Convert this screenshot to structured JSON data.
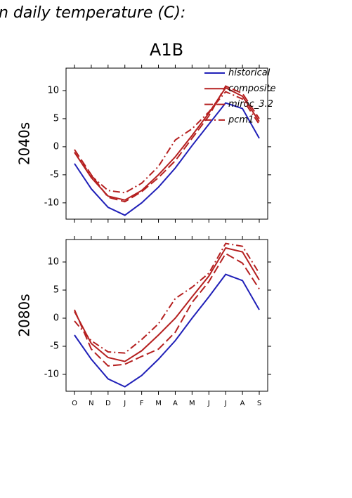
{
  "chart_data": [
    {
      "type": "line",
      "title": "n daily temperature (C):",
      "subtitle": "A1B",
      "ylabel": "2040s",
      "ylim": [
        -12.9,
        14
      ],
      "yticks": [
        -10,
        -5,
        0,
        5,
        10
      ],
      "legend": "upper right",
      "series": [
        {
          "name": "historical",
          "color": "#2020b8",
          "dash": "solid",
          "values": [
            -3,
            -7.5,
            -10.8,
            -12.2,
            -10,
            -7.2,
            -3.8,
            0.2,
            4,
            7.8,
            6.8,
            1.5
          ]
        },
        {
          "name": "composite",
          "color": "#b52020",
          "dash": "solid",
          "values": [
            -1,
            -5.5,
            -8.8,
            -9.5,
            -7.8,
            -5,
            -1.8,
            2,
            6,
            10.5,
            9,
            4.5
          ]
        },
        {
          "name": "miroc_3.2",
          "color": "#b52020",
          "dash": "dashed",
          "values": [
            -0.5,
            -5,
            -9,
            -9.8,
            -8,
            -5.5,
            -2.5,
            1.5,
            5.5,
            10.8,
            9.5,
            5
          ]
        },
        {
          "name": "pcm1",
          "color": "#b52020",
          "dash": "dashdot",
          "values": [
            -1,
            -5.2,
            -7.8,
            -8.2,
            -6.5,
            -3.5,
            1.2,
            3.2,
            6.2,
            9.8,
            8.5,
            4
          ]
        }
      ]
    },
    {
      "type": "line",
      "ylabel": "2080s",
      "categories": [
        "O",
        "N",
        "D",
        "J",
        "F",
        "M",
        "A",
        "M",
        "J",
        "J",
        "A",
        "S"
      ],
      "ylim": [
        -13,
        14
      ],
      "yticks": [
        -10,
        -5,
        0,
        5,
        10
      ],
      "series": [
        {
          "color": "#2020b8",
          "dash": "solid",
          "values": [
            -3,
            -7.3,
            -10.8,
            -12.2,
            -10.2,
            -7.3,
            -4,
            0,
            3.8,
            7.8,
            6.7,
            1.5
          ]
        },
        {
          "color": "#b52020",
          "dash": "solid",
          "values": [
            1.2,
            -4.5,
            -7,
            -7.7,
            -5.8,
            -3,
            0,
            3.8,
            7.5,
            12.5,
            11.8,
            6.8
          ]
        },
        {
          "color": "#b52020",
          "dash": "dashed",
          "values": [
            1.5,
            -5.5,
            -8.5,
            -8.2,
            -6.8,
            -5.5,
            -2.5,
            2.8,
            6.5,
            11.5,
            9.8,
            5.2
          ]
        },
        {
          "color": "#b52020",
          "dash": "dashdot",
          "values": [
            -0.5,
            -4,
            -6,
            -6.2,
            -3.8,
            -1,
            3.5,
            5.5,
            8,
            13.3,
            12.8,
            8
          ]
        }
      ]
    }
  ]
}
